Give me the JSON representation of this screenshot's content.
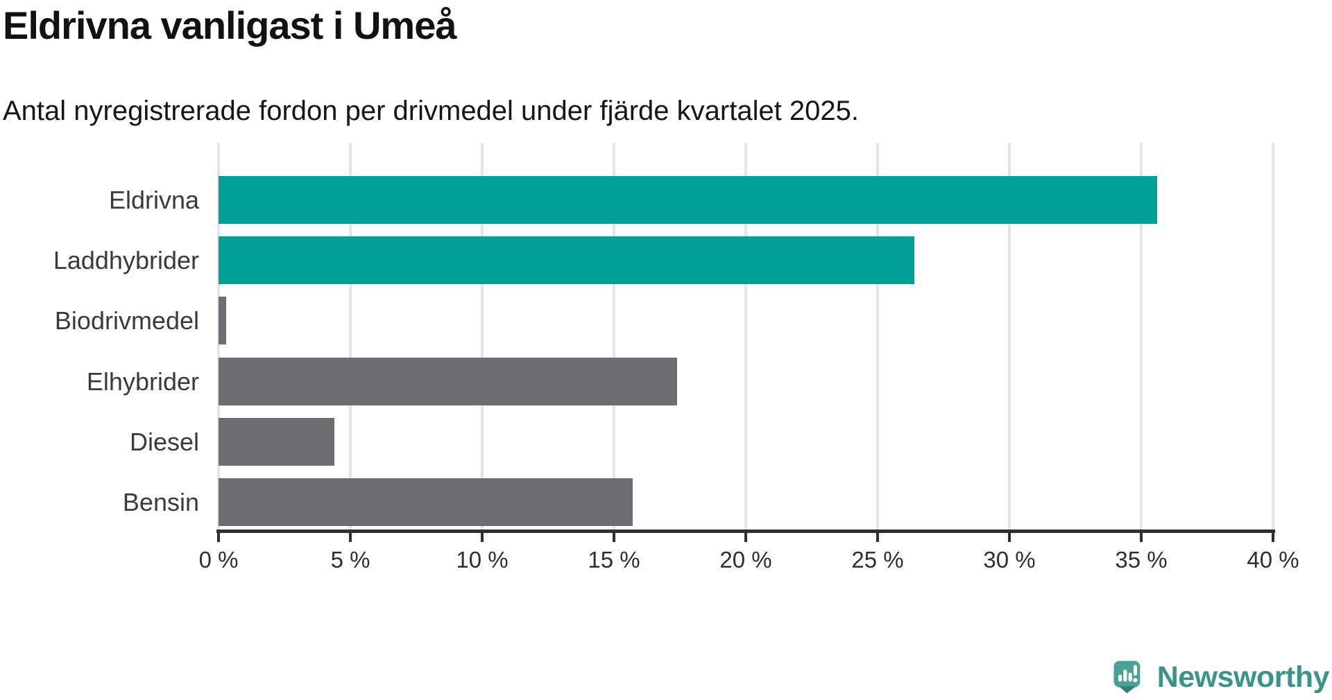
{
  "header": {
    "title": "Eldrivna vanligast i Umeå",
    "subtitle": "Antal nyregistrerade fordon per drivmedel under fjärde kvartalet 2025."
  },
  "chart_data": {
    "type": "bar",
    "orientation": "horizontal",
    "title": "Eldrivna vanligast i Umeå",
    "subtitle": "Antal nyregistrerade fordon per drivmedel under fjärde kvartalet 2025.",
    "categories": [
      "Eldrivna",
      "Laddhybrider",
      "Biodrivmedel",
      "Elhybrider",
      "Diesel",
      "Bensin"
    ],
    "values": [
      35.6,
      26.4,
      0.3,
      17.4,
      4.4,
      15.7
    ],
    "unit": "%",
    "bar_colors": [
      "#00A099",
      "#00A099",
      "#6D6D72",
      "#6D6D72",
      "#6D6D72",
      "#6D6D72"
    ],
    "highlight_color": "#00A099",
    "default_color": "#6D6D72",
    "xlim": [
      0,
      40
    ],
    "x_ticks": [
      0,
      5,
      10,
      15,
      20,
      25,
      30,
      35,
      40
    ],
    "x_tick_labels": [
      "0 %",
      "5 %",
      "10 %",
      "15 %",
      "20 %",
      "25 %",
      "30 %",
      "35 %",
      "40 %"
    ],
    "grid": "vertical-gridlines-on",
    "legend": "none"
  },
  "footer": {
    "brand": "Newsworthy",
    "brand_color": "#3b948b",
    "logo_icon": "newsworthy-speech-bubble-chart-icon"
  }
}
